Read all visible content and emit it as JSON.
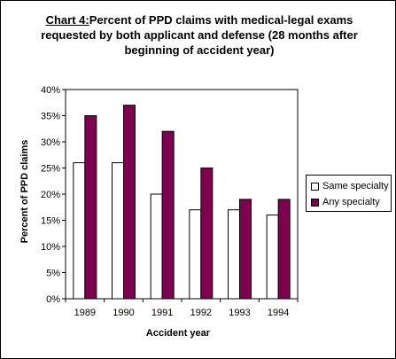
{
  "title": {
    "prefix": "Chart 4:",
    "text": "Percent of PPD claims with medical-legal exams requested by both applicant and defense (28 months after beginning of accident year)"
  },
  "colors": {
    "same": "#ffffff",
    "any": "#800050"
  },
  "chart_data": {
    "type": "bar",
    "categories": [
      "1989",
      "1990",
      "1991",
      "1992",
      "1993",
      "1994"
    ],
    "series": [
      {
        "name": "Same specialty",
        "values": [
          26,
          26,
          20,
          17,
          17,
          16
        ]
      },
      {
        "name": "Any specialty",
        "values": [
          35,
          37,
          32,
          25,
          19,
          19
        ]
      }
    ],
    "ylim": [
      0,
      40
    ],
    "yticks": [
      "0%",
      "5%",
      "10%",
      "15%",
      "20%",
      "25%",
      "30%",
      "35%",
      "40%"
    ],
    "xlabel": "Accident year",
    "ylabel": "Percent of PPD claims",
    "grid": false,
    "legend_position": "right"
  }
}
